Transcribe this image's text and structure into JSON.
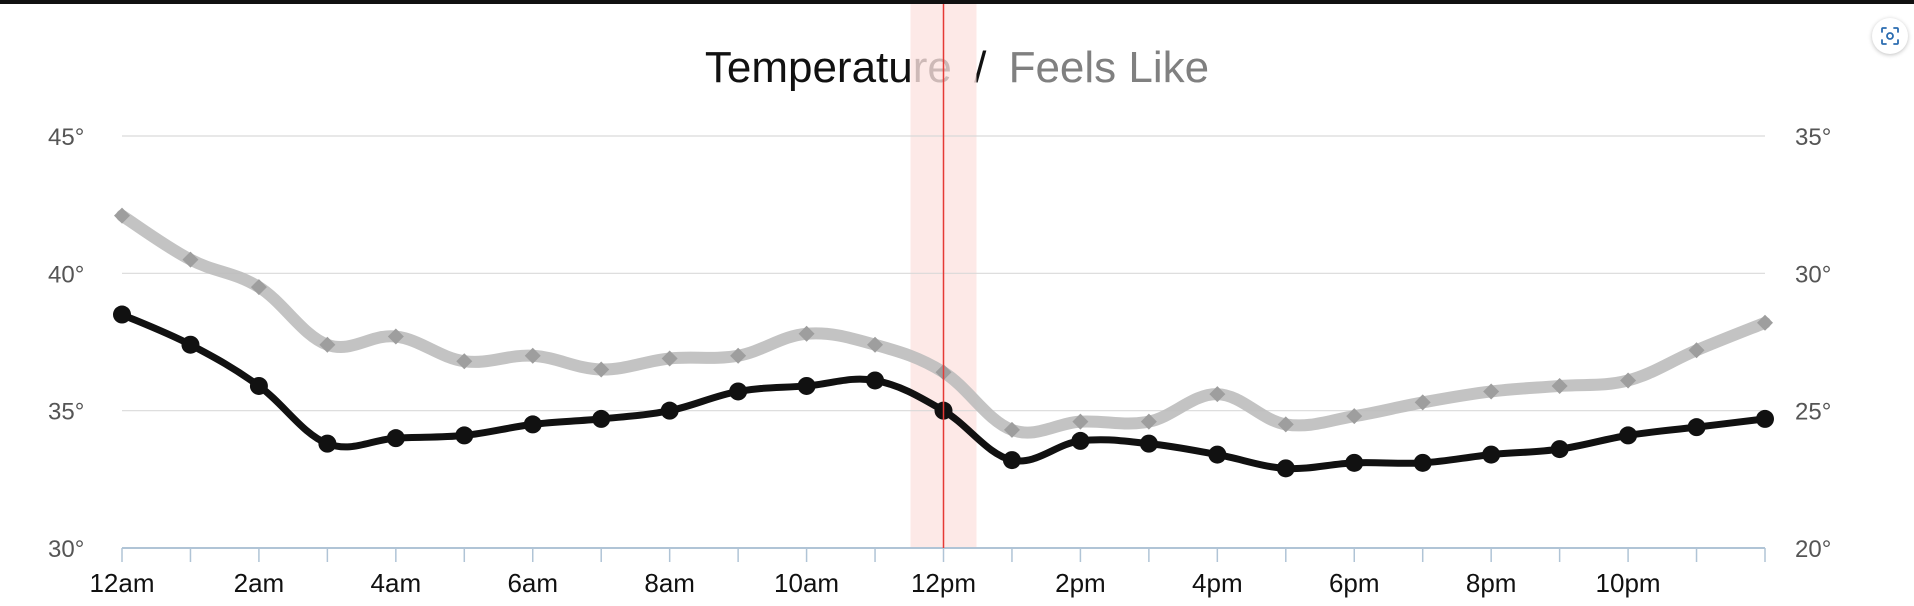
{
  "colors": {
    "temperature": "#111111",
    "feels_like": "#bdbdbd",
    "feels_like_marker": "#9e9e9e",
    "now_line": "#e53935",
    "now_band": "#fde3e1",
    "grid": "#d9d9d9",
    "axis": "#b0c4d6",
    "label": "#555555",
    "title_primary": "#111111",
    "title_secondary": "#808080"
  },
  "chart_data": {
    "type": "line",
    "title_primary": "Temperature",
    "title_separator": "/",
    "title_secondary": "Feels Like",
    "categories": [
      "12am",
      "1am",
      "2am",
      "3am",
      "4am",
      "5am",
      "6am",
      "7am",
      "8am",
      "9am",
      "10am",
      "11am",
      "12pm",
      "1pm",
      "2pm",
      "3pm",
      "4pm",
      "5pm",
      "6pm",
      "7pm",
      "8pm",
      "9pm",
      "10pm",
      "11pm",
      "12am"
    ],
    "x_tick_labels": [
      "12am",
      "2am",
      "4am",
      "6am",
      "8am",
      "10am",
      "12pm",
      "2pm",
      "4pm",
      "6pm",
      "8pm",
      "10pm"
    ],
    "left_axis": {
      "ylim": [
        30,
        45
      ],
      "ticks": [
        "30°",
        "35°",
        "40°",
        "45°"
      ]
    },
    "right_axis": {
      "ylim": [
        20,
        35
      ],
      "ticks": [
        "20°",
        "25°",
        "30°",
        "35°"
      ]
    },
    "series": [
      {
        "name": "Temperature",
        "axis": "left",
        "marker": "circle",
        "values": [
          38.5,
          37.4,
          35.9,
          33.8,
          34.0,
          34.1,
          34.5,
          34.7,
          35.0,
          35.7,
          35.9,
          36.1,
          35.0,
          33.2,
          33.9,
          33.8,
          33.4,
          32.9,
          33.1,
          33.1,
          33.4,
          33.6,
          34.1,
          34.4,
          34.7
        ]
      },
      {
        "name": "Feels Like",
        "axis": "right",
        "marker": "diamond",
        "values": [
          32.1,
          30.5,
          29.5,
          27.4,
          27.7,
          26.8,
          27.0,
          26.5,
          26.9,
          27.0,
          27.8,
          27.4,
          26.4,
          24.3,
          24.6,
          24.6,
          25.6,
          24.5,
          24.8,
          25.3,
          25.7,
          25.9,
          26.1,
          27.2,
          28.2
        ]
      }
    ],
    "current_time_index": 12,
    "grid": true
  }
}
